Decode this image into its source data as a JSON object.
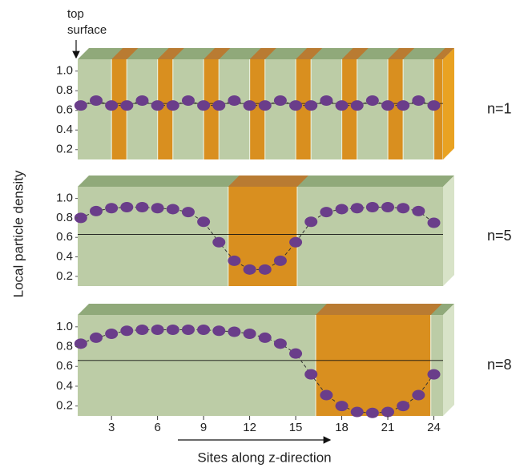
{
  "figure": {
    "ylabel": "Local particle density",
    "xlabel": "Sites along z-direction",
    "annotation": [
      "top",
      "surface"
    ]
  },
  "chart_data": [
    {
      "type": "line",
      "label": "n=1",
      "color": "#6a3d8a",
      "x": [
        1,
        2,
        3,
        4,
        5,
        6,
        7,
        8,
        9,
        10,
        11,
        12,
        13,
        14,
        15,
        16,
        17,
        18,
        19,
        20,
        21,
        22,
        23,
        24
      ],
      "values": [
        0.65,
        0.7,
        0.65,
        0.65,
        0.7,
        0.65,
        0.65,
        0.7,
        0.65,
        0.65,
        0.7,
        0.65,
        0.65,
        0.7,
        0.65,
        0.65,
        0.7,
        0.65,
        0.65,
        0.7,
        0.65,
        0.65,
        0.7,
        0.65
      ],
      "hline": 0.67,
      "regions": [
        [
          3,
          4
        ],
        [
          6,
          7
        ],
        [
          9,
          10
        ],
        [
          12,
          13
        ],
        [
          15,
          16
        ],
        [
          18,
          19
        ],
        [
          21,
          22
        ],
        [
          24,
          24.6
        ]
      ],
      "xlim": [
        0.8,
        24.6
      ],
      "ylim": [
        0.1,
        1.12
      ],
      "yticks": [
        0.2,
        0.4,
        0.6,
        0.8,
        {
          "value": 1,
          "label": "1.0"
        }
      ]
    },
    {
      "type": "line",
      "label": "n=5",
      "color": "#6a3d8a",
      "x": [
        1,
        2,
        3,
        4,
        5,
        6,
        7,
        8,
        9,
        10,
        11,
        12,
        13,
        14,
        15,
        16,
        17,
        18,
        19,
        20,
        21,
        22,
        23,
        24
      ],
      "values": [
        0.8,
        0.87,
        0.9,
        0.91,
        0.91,
        0.9,
        0.89,
        0.86,
        0.76,
        0.55,
        0.36,
        0.27,
        0.27,
        0.36,
        0.55,
        0.76,
        0.86,
        0.89,
        0.9,
        0.91,
        0.91,
        0.9,
        0.87,
        0.75
      ],
      "hline": 0.63,
      "regions": [
        [
          10.6,
          15.1
        ]
      ],
      "xlim": [
        0.8,
        24.6
      ],
      "ylim": [
        0.1,
        1.12
      ],
      "yticks": [
        0.2,
        0.4,
        0.6,
        0.8,
        {
          "value": 1,
          "label": "1.0"
        }
      ]
    },
    {
      "type": "line",
      "label": "n=8",
      "color": "#6a3d8a",
      "x": [
        1,
        2,
        3,
        4,
        5,
        6,
        7,
        8,
        9,
        10,
        11,
        12,
        13,
        14,
        15,
        16,
        17,
        18,
        19,
        20,
        21,
        22,
        23,
        24
      ],
      "values": [
        0.83,
        0.89,
        0.93,
        0.96,
        0.97,
        0.97,
        0.97,
        0.97,
        0.97,
        0.96,
        0.95,
        0.93,
        0.89,
        0.83,
        0.73,
        0.52,
        0.31,
        0.2,
        0.14,
        0.13,
        0.14,
        0.2,
        0.31,
        0.52
      ],
      "hline": 0.66,
      "regions": [
        [
          16.3,
          23.8
        ]
      ],
      "xlim": [
        0.8,
        24.6
      ],
      "ylim": [
        0.1,
        1.12
      ],
      "yticks": [
        0.2,
        0.4,
        0.6,
        0.8,
        {
          "value": 1,
          "label": "1.0"
        }
      ],
      "xticks": [
        3,
        6,
        9,
        12,
        15,
        18,
        21,
        24
      ]
    }
  ]
}
